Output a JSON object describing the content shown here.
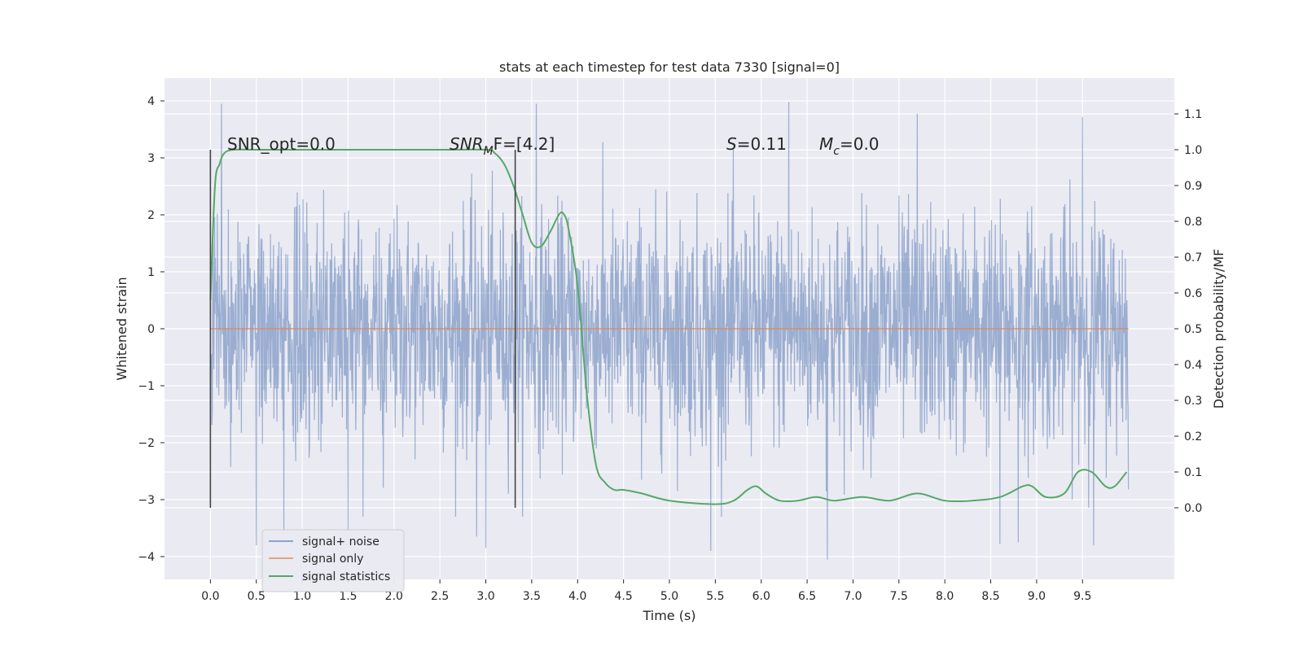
{
  "chart_data": {
    "type": "line",
    "title": "stats at each timestep for test data 7330 [signal=0]",
    "xlabel": "Time (s)",
    "ylabel": "Whitened strain",
    "y2label": "Detection probability/MF",
    "xlim": [
      -0.5,
      10.5
    ],
    "ylim": [
      -4.4,
      4.4
    ],
    "y2lim": [
      -0.2,
      1.2
    ],
    "xticks": [
      "0.0",
      "0.5",
      "1.0",
      "1.5",
      "2.0",
      "2.5",
      "3.0",
      "3.5",
      "4.0",
      "4.5",
      "5.0",
      "5.5",
      "6.0",
      "6.5",
      "7.0",
      "7.5",
      "8.0",
      "8.5",
      "9.0",
      "9.5"
    ],
    "yticks": [
      "4",
      "3",
      "2",
      "1",
      "0",
      "−1",
      "−2",
      "−3",
      "−4"
    ],
    "y2ticks": [
      "1.1",
      "1.0",
      "0.9",
      "0.8",
      "0.7",
      "0.6",
      "0.5",
      "0.4",
      "0.3",
      "0.2",
      "0.1",
      "0.0"
    ],
    "grid": true,
    "legend_position": "lower-left",
    "annotations": {
      "snr_opt": "SNR_opt=0.0",
      "snr_mf_prefix": "SNR",
      "snr_mf_sub": "M",
      "snr_mf_rest": "F=[4.2]",
      "s_var": "S",
      "s_value": "=0.11",
      "mc_var": "M",
      "mc_sub": "c",
      "mc_value": "=0.0"
    },
    "vertical_markers_x": [
      0.0,
      3.32
    ],
    "colors": {
      "noise": "#4c72b0",
      "signal": "#dd8452",
      "stats": "#55a868",
      "background": "#eaeaf2",
      "marker": "#444444"
    },
    "series": [
      {
        "name": "signal+ noise",
        "axis": "left",
        "style": "dense noise trace, amplitude ~N(0,1) with peaks to about ±4",
        "x_range": [
          0.0,
          10.0
        ],
        "noise_std": 1.0,
        "peaks": [
          [
            0.12,
            3.95
          ],
          [
            0.5,
            -3.8
          ],
          [
            0.8,
            -3.6
          ],
          [
            1.5,
            -3.55
          ],
          [
            2.9,
            -3.65
          ],
          [
            3.0,
            -3.85
          ],
          [
            3.55,
            3.95
          ],
          [
            5.45,
            -3.9
          ],
          [
            6.3,
            3.98
          ],
          [
            6.72,
            -4.05
          ],
          [
            7.7,
            3.78
          ],
          [
            8.6,
            -3.78
          ],
          [
            8.8,
            -3.75
          ],
          [
            9.5,
            3.72
          ],
          [
            9.62,
            -3.8
          ]
        ]
      },
      {
        "name": "signal only",
        "axis": "left",
        "x": [
          0.0,
          10.0
        ],
        "y": [
          0.0,
          0.0
        ]
      },
      {
        "name": "signal statistics",
        "axis": "right",
        "x": [
          0.0,
          0.05,
          0.1,
          0.15,
          0.25,
          0.5,
          1.0,
          2.0,
          2.5,
          3.0,
          3.1,
          3.2,
          3.3,
          3.4,
          3.5,
          3.6,
          3.7,
          3.8,
          3.85,
          3.9,
          4.0,
          4.1,
          4.2,
          4.3,
          4.4,
          4.5,
          4.7,
          5.0,
          5.5,
          5.7,
          5.85,
          5.95,
          6.05,
          6.2,
          6.4,
          6.6,
          6.8,
          7.1,
          7.4,
          7.7,
          8.0,
          8.3,
          8.6,
          8.85,
          8.95,
          9.1,
          9.3,
          9.45,
          9.6,
          9.75,
          9.85,
          9.98
        ],
        "y": [
          0.58,
          0.9,
          0.96,
          0.99,
          1.0,
          1.0,
          1.0,
          1.0,
          1.0,
          1.0,
          0.99,
          0.96,
          0.9,
          0.82,
          0.74,
          0.73,
          0.77,
          0.82,
          0.82,
          0.78,
          0.62,
          0.32,
          0.12,
          0.07,
          0.05,
          0.05,
          0.04,
          0.02,
          0.01,
          0.02,
          0.05,
          0.06,
          0.04,
          0.02,
          0.02,
          0.03,
          0.02,
          0.03,
          0.02,
          0.04,
          0.02,
          0.02,
          0.03,
          0.06,
          0.06,
          0.03,
          0.04,
          0.1,
          0.1,
          0.06,
          0.06,
          0.1
        ]
      }
    ]
  }
}
